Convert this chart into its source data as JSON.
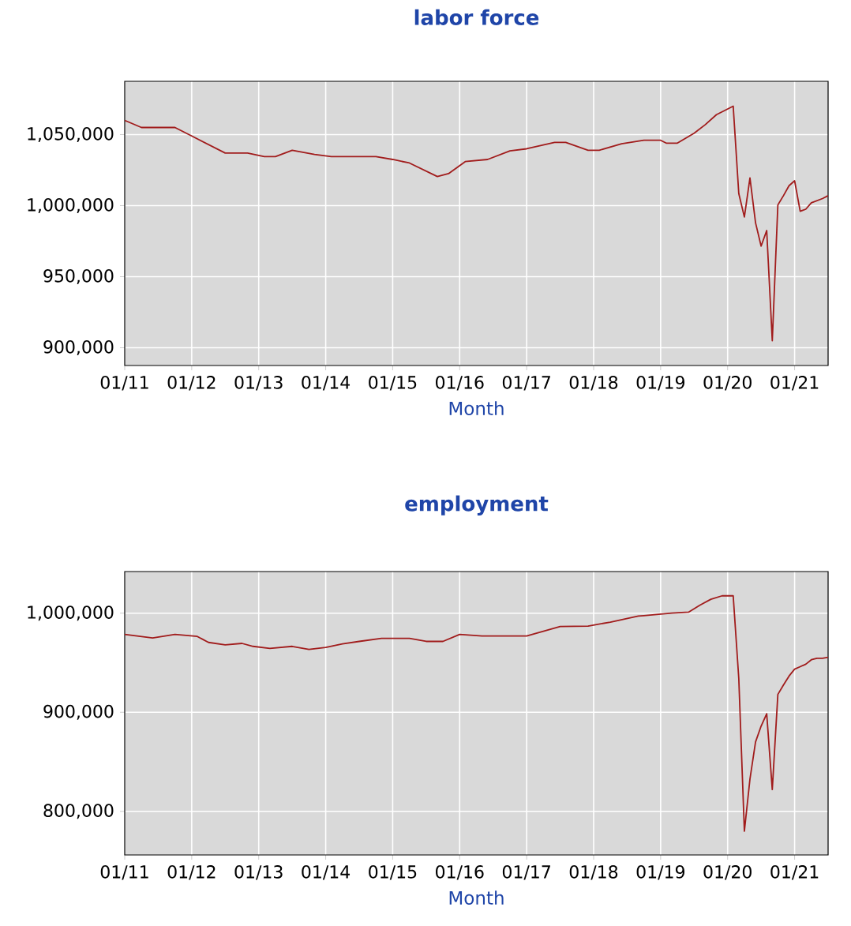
{
  "chart_data": [
    {
      "type": "line",
      "title": "labor force",
      "xlabel": "Month",
      "color": "#a11c1c",
      "grid": true,
      "x": [
        "2011-01",
        "2011-04",
        "2011-10",
        "2012-01",
        "2012-04",
        "2012-07",
        "2012-11",
        "2013-02",
        "2013-04",
        "2013-07",
        "2013-11",
        "2014-02",
        "2014-10",
        "2015-01",
        "2015-04",
        "2015-09",
        "2015-11",
        "2016-02",
        "2016-06",
        "2016-10",
        "2017-01",
        "2017-06",
        "2017-08",
        "2017-12",
        "2018-02",
        "2018-06",
        "2018-10",
        "2019-01",
        "2019-02",
        "2019-04",
        "2019-07",
        "2019-09",
        "2019-11",
        "2020-02",
        "2020-03",
        "2020-04",
        "2020-05",
        "2020-06",
        "2020-07",
        "2020-08",
        "2020-09",
        "2020-10",
        "2020-11",
        "2020-12",
        "2021-01",
        "2021-02",
        "2021-03",
        "2021-04",
        "2021-05",
        "2021-06",
        "2021-07"
      ],
      "values": [
        1060000,
        1055000,
        1055000,
        1049000,
        1043000,
        1037000,
        1037000,
        1034500,
        1034500,
        1039000,
        1036000,
        1034500,
        1034500,
        1032500,
        1030000,
        1020500,
        1022500,
        1031000,
        1032500,
        1038500,
        1040000,
        1044500,
        1044500,
        1039000,
        1039000,
        1043500,
        1046000,
        1046000,
        1044000,
        1044000,
        1051000,
        1057000,
        1064000,
        1070000,
        1008500,
        992000,
        1019500,
        988000,
        971500,
        982500,
        905000,
        1000500,
        1007000,
        1014000,
        1017500,
        996000,
        997500,
        1002000,
        1003500,
        1005000,
        1007000
      ],
      "xlim": [
        "2011-01",
        "2021-07"
      ],
      "xticks": [
        {
          "value": "2011-01",
          "label": "01/11"
        },
        {
          "value": "2012-01",
          "label": "01/12"
        },
        {
          "value": "2013-01",
          "label": "01/13"
        },
        {
          "value": "2014-01",
          "label": "01/14"
        },
        {
          "value": "2015-01",
          "label": "01/15"
        },
        {
          "value": "2016-01",
          "label": "01/16"
        },
        {
          "value": "2017-01",
          "label": "01/17"
        },
        {
          "value": "2018-01",
          "label": "01/18"
        },
        {
          "value": "2019-01",
          "label": "01/19"
        },
        {
          "value": "2020-01",
          "label": "01/20"
        },
        {
          "value": "2021-01",
          "label": "01/21"
        }
      ],
      "ylim": [
        887500,
        1087500
      ],
      "yticks": [
        {
          "value": 900000,
          "label": "900,000"
        },
        {
          "value": 950000,
          "label": "950,000"
        },
        {
          "value": 1000000,
          "label": "1,000,000"
        },
        {
          "value": 1050000,
          "label": "1,050,000"
        }
      ]
    },
    {
      "type": "line",
      "title": "employment",
      "xlabel": "Month",
      "color": "#a11c1c",
      "grid": true,
      "x": [
        "2011-01",
        "2011-06",
        "2011-10",
        "2012-02",
        "2012-04",
        "2012-07",
        "2012-10",
        "2012-12",
        "2013-03",
        "2013-07",
        "2013-10",
        "2014-01",
        "2014-04",
        "2014-07",
        "2014-11",
        "2015-04",
        "2015-07",
        "2015-10",
        "2016-01",
        "2016-05",
        "2017-01",
        "2017-07",
        "2017-12",
        "2018-04",
        "2018-09",
        "2018-10",
        "2019-03",
        "2019-06",
        "2019-08",
        "2019-10",
        "2019-12",
        "2020-02",
        "2020-03",
        "2020-04",
        "2020-05",
        "2020-06",
        "2020-07",
        "2020-08",
        "2020-09",
        "2020-10",
        "2020-11",
        "2020-12",
        "2021-01",
        "2021-02",
        "2021-03",
        "2021-04",
        "2021-05",
        "2021-06",
        "2021-07"
      ],
      "values": [
        978500,
        975000,
        978500,
        976500,
        970500,
        968000,
        969500,
        966500,
        964500,
        966500,
        963500,
        965500,
        969000,
        971500,
        974500,
        974500,
        971500,
        971500,
        978500,
        977000,
        977000,
        986500,
        987000,
        991000,
        997000,
        997500,
        1000000,
        1001000,
        1008000,
        1014000,
        1017500,
        1017500,
        934000,
        780000,
        832500,
        870000,
        886000,
        898500,
        822000,
        918000,
        927500,
        936500,
        943500,
        946000,
        948500,
        953000,
        954500,
        954500,
        955500
      ],
      "xlim": [
        "2011-01",
        "2021-07"
      ],
      "xticks": [
        {
          "value": "2011-01",
          "label": "01/11"
        },
        {
          "value": "2012-01",
          "label": "01/12"
        },
        {
          "value": "2013-01",
          "label": "01/13"
        },
        {
          "value": "2014-01",
          "label": "01/14"
        },
        {
          "value": "2015-01",
          "label": "01/15"
        },
        {
          "value": "2016-01",
          "label": "01/16"
        },
        {
          "value": "2017-01",
          "label": "01/17"
        },
        {
          "value": "2018-01",
          "label": "01/18"
        },
        {
          "value": "2019-01",
          "label": "01/19"
        },
        {
          "value": "2020-01",
          "label": "01/20"
        },
        {
          "value": "2021-01",
          "label": "01/21"
        }
      ],
      "ylim": [
        756000,
        1042000
      ],
      "yticks": [
        {
          "value": 800000,
          "label": "800,000"
        },
        {
          "value": 900000,
          "label": "900,000"
        },
        {
          "value": 1000000,
          "label": "1,000,000"
        }
      ]
    }
  ]
}
